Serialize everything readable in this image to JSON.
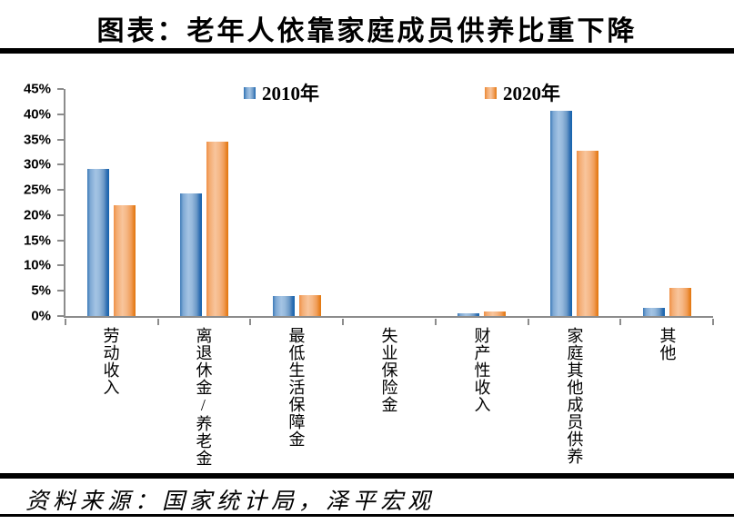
{
  "title": "图表：老年人依靠家庭成员供养比重下降",
  "source": "资料来源：国家统计局，泽平宏观",
  "colors": {
    "series_2010_blue": "#5B94C8",
    "series_2020_orange": "#F0A263",
    "axis_gray": "#8C8C8C",
    "rule_black": "#000000"
  },
  "chart_data": {
    "type": "bar",
    "categories": [
      "劳动收入",
      "离退休金/养老金",
      "最低生活保障金",
      "失业保险金",
      "财产性收入",
      "家庭其他成员供养",
      "其他"
    ],
    "series": [
      {
        "name": "2010年",
        "color": "#5B94C8",
        "values": [
          29.1,
          24.3,
          3.9,
          0,
          0.5,
          40.7,
          1.6
        ]
      },
      {
        "name": "2020年",
        "color": "#F0A263",
        "values": [
          22.0,
          34.6,
          4.2,
          0,
          0.9,
          32.7,
          5.5
        ]
      }
    ],
    "y_ticks": [
      "0%",
      "5%",
      "10%",
      "15%",
      "20%",
      "25%",
      "30%",
      "35%",
      "40%",
      "45%"
    ],
    "y_tick_step": 5,
    "ylim": [
      0,
      45
    ],
    "grid": false,
    "legend_position": "top"
  }
}
